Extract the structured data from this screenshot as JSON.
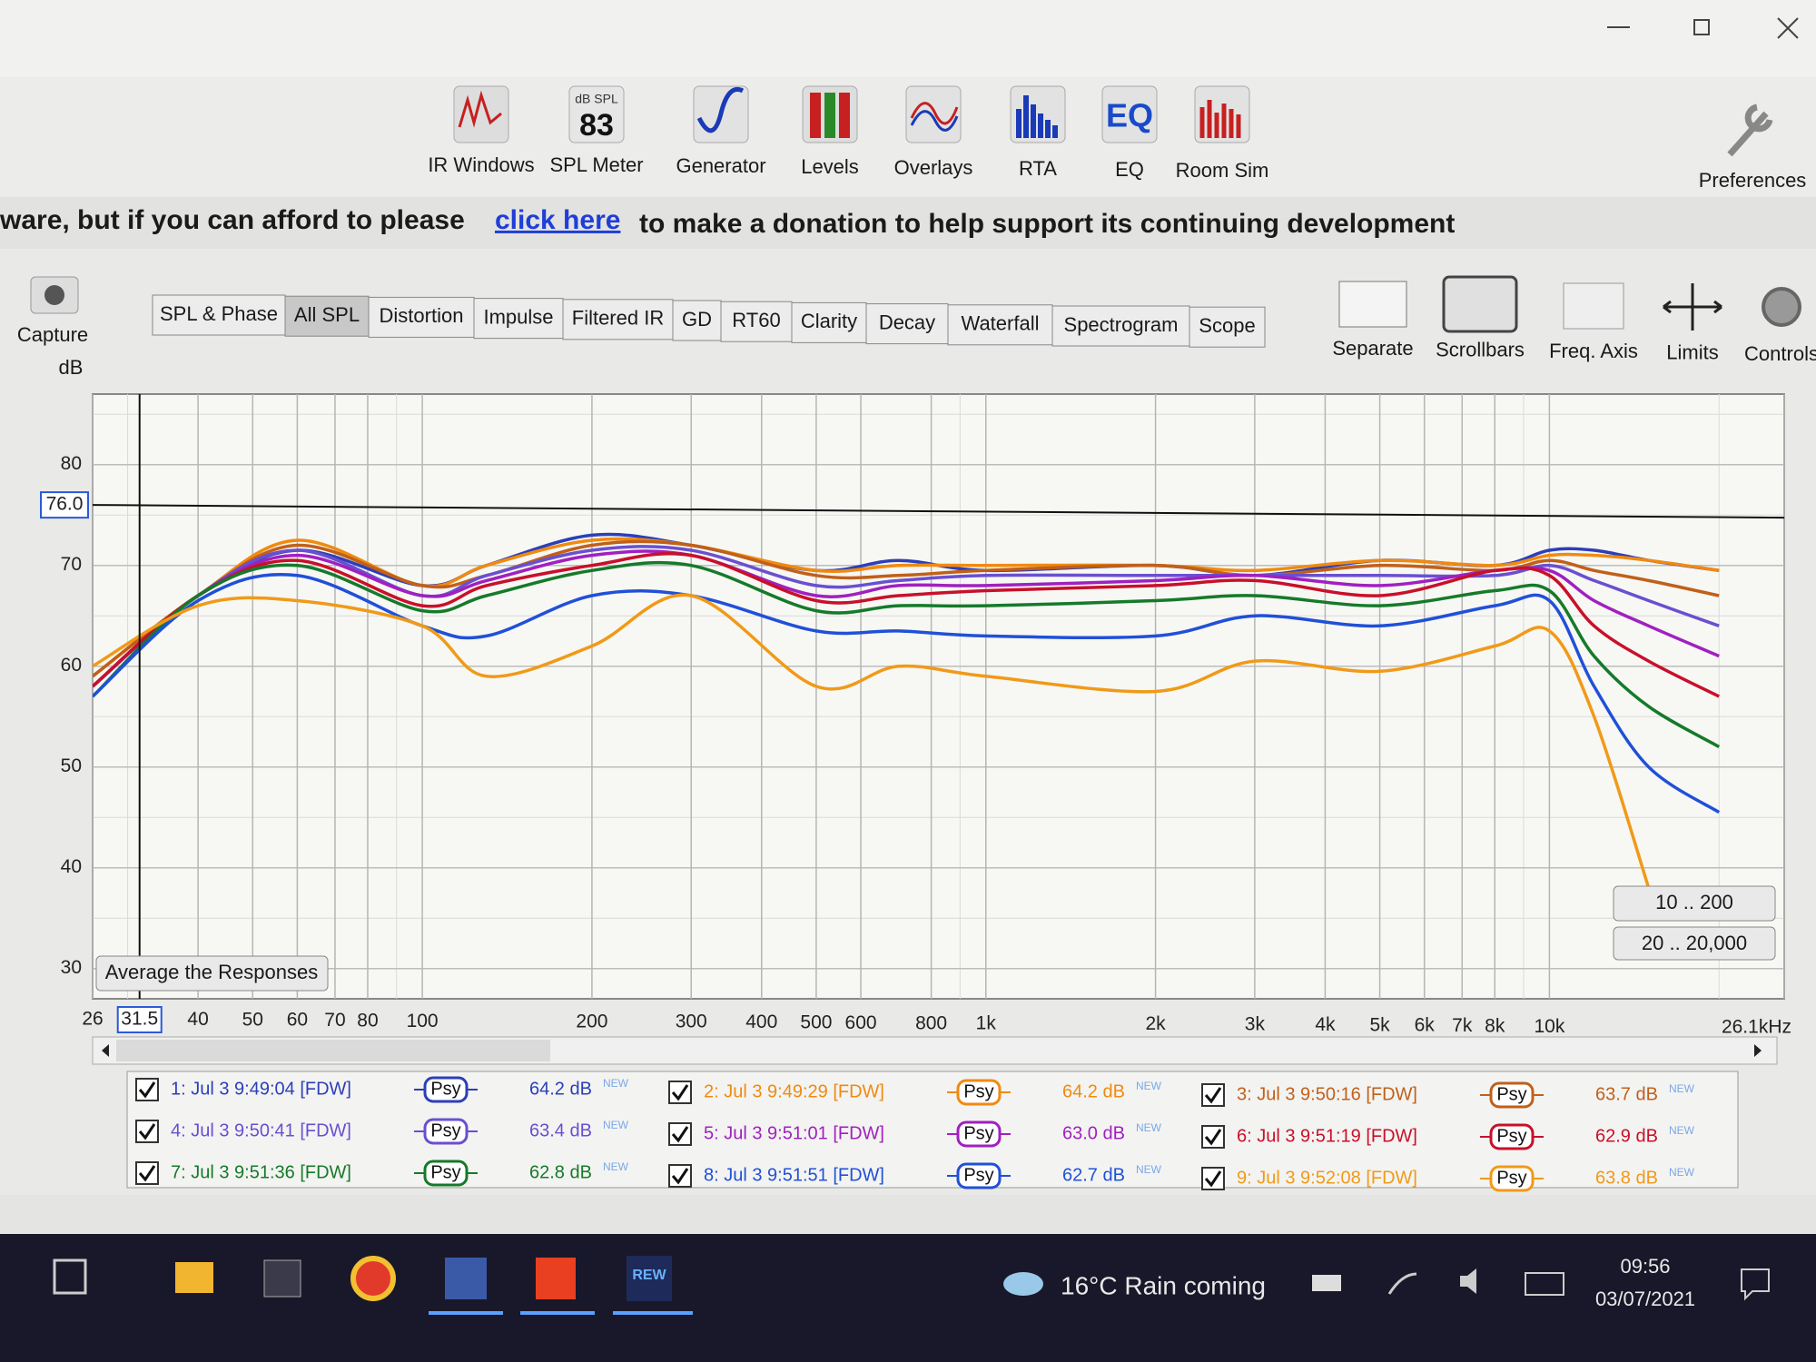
{
  "window": {
    "toolbar": [
      "IR Windows",
      "SPL Meter",
      "Generator",
      "Levels",
      "Overlays",
      "RTA",
      "EQ",
      "Room Sim"
    ],
    "spl_meter_icon": {
      "unit": "dB SPL",
      "reading": "83"
    },
    "eq_icon": "EQ",
    "preferences": "Preferences",
    "banner": {
      "lead": "ware, but if you can afford to please",
      "link": "click here",
      "tail": "to make a donation to help support its continuing development"
    },
    "capture": "Capture",
    "tabs": [
      "SPL & Phase",
      "All SPL",
      "Distortion",
      "Impulse",
      "Filtered IR",
      "GD",
      "RT60",
      "Clarity",
      "Decay",
      "Waterfall",
      "Spectrogram",
      "Scope"
    ],
    "active_tab": 1,
    "view_tools": [
      "Separate",
      "Scrollbars",
      "Freq. Axis",
      "Limits",
      "Controls"
    ],
    "buttons": {
      "average": "Average the Responses",
      "range_1": "10 .. 200",
      "range_2": "20 .. 20,000"
    },
    "taskbar": {
      "weather": "16°C Rain coming",
      "time": "09:56",
      "date": "03/07/2021",
      "app_icon": "REW"
    }
  },
  "chart_data": {
    "type": "line",
    "y_label": "dB",
    "log_x": true,
    "grid": true,
    "x": [
      26,
      40,
      60,
      100,
      130,
      200,
      300,
      500,
      700,
      1000,
      2000,
      3000,
      5000,
      8000,
      10000,
      12000,
      15000,
      20000
    ],
    "xlim": [
      26,
      26100
    ],
    "ylim": [
      27,
      87
    ],
    "yticks": [
      30,
      40,
      50,
      60,
      70,
      80
    ],
    "yminor": [
      35,
      45,
      55,
      65,
      75,
      85
    ],
    "xticks": [
      26,
      40,
      50,
      60,
      70,
      80,
      100,
      200,
      300,
      400,
      500,
      600,
      800,
      {
        "value": 1000,
        "label": "1k"
      },
      {
        "value": 2000,
        "label": "2k"
      },
      {
        "value": 3000,
        "label": "3k"
      },
      {
        "value": 4000,
        "label": "4k"
      },
      {
        "value": 5000,
        "label": "5k"
      },
      {
        "value": 6000,
        "label": "6k"
      },
      {
        "value": 7000,
        "label": "7k"
      },
      {
        "value": 8000,
        "label": "8k"
      },
      {
        "value": 10000,
        "label": "10k"
      },
      {
        "value": 26100,
        "label": "26.1kHz"
      }
    ],
    "xminor": [
      30,
      90,
      900,
      9000,
      20000
    ],
    "cursor_x": {
      "value": 31.5,
      "label": "31.5"
    },
    "cursor_y": {
      "value": 76,
      "label": "76.0"
    },
    "series": [
      {
        "name": "1: Jul 3 9:49:04 [FDW]",
        "color": "#2c3fb8",
        "smoothing": "Psy",
        "level": "64.2 dB",
        "badge": "NEW",
        "values": [
          58,
          67,
          71.5,
          68,
          70,
          73,
          72,
          69.5,
          70.5,
          69.5,
          70,
          69,
          70.5,
          70,
          71.5,
          71.5,
          70.5,
          69.5
        ]
      },
      {
        "name": "2: Jul 3 9:49:29 [FDW]",
        "color": "#f08a10",
        "smoothing": "Psy",
        "level": "64.2 dB",
        "badge": "NEW",
        "values": [
          59,
          67,
          72.5,
          68,
          70,
          72.5,
          72,
          69.5,
          70,
          70,
          70,
          69.5,
          70.5,
          70,
          71,
          71,
          70.5,
          69.5
        ]
      },
      {
        "name": "3: Jul 3 9:50:16 [FDW]",
        "color": "#c0601a",
        "smoothing": "Psy",
        "level": "63.7 dB",
        "badge": "NEW",
        "values": [
          59,
          67,
          72,
          68,
          69,
          72,
          72,
          69,
          69,
          69.5,
          70,
          69,
          70,
          69.5,
          70.5,
          69.5,
          68.5,
          67
        ]
      },
      {
        "name": "4: Jul 3 9:50:41 [FDW]",
        "color": "#6a4fd0",
        "smoothing": "Psy",
        "level": "63.4 dB",
        "badge": "NEW",
        "values": [
          58,
          67,
          71.5,
          67,
          69,
          71.5,
          71.5,
          68,
          68.5,
          69,
          69,
          69,
          69,
          69,
          70,
          68.5,
          66.5,
          64
        ]
      },
      {
        "name": "5: Jul 3 9:51:01 [FDW]",
        "color": "#a020c0",
        "smoothing": "Psy",
        "level": "63.0 dB",
        "badge": "NEW",
        "values": [
          58,
          67,
          71,
          67,
          68.5,
          71,
          71,
          67,
          68,
          68,
          68.5,
          69,
          68,
          69.5,
          69.5,
          66.5,
          64,
          61
        ]
      },
      {
        "name": "6: Jul 3 9:51:19 [FDW]",
        "color": "#c8102a",
        "smoothing": "Psy",
        "level": "62.9 dB",
        "badge": "NEW",
        "values": [
          58,
          67,
          70.5,
          66,
          68,
          70,
          71,
          66.5,
          67,
          67.5,
          68,
          68.5,
          67,
          69.5,
          69,
          64,
          60.5,
          57
        ]
      },
      {
        "name": "7: Jul 3 9:51:36 [FDW]",
        "color": "#157a2a",
        "smoothing": "Psy",
        "level": "62.8 dB",
        "badge": "NEW",
        "values": [
          57,
          67,
          70,
          65.5,
          67,
          69.5,
          70,
          65.5,
          66,
          66,
          66.5,
          67,
          66,
          67.5,
          67.5,
          61,
          56,
          52
        ]
      },
      {
        "name": "8: Jul 3 9:51:51 [FDW]",
        "color": "#2050d8",
        "smoothing": "Psy",
        "level": "62.7 dB",
        "badge": "NEW",
        "values": [
          57,
          66.5,
          69,
          64,
          63,
          67,
          67,
          63.5,
          63.5,
          63,
          63,
          65,
          64,
          66,
          66.5,
          58,
          50,
          45.5
        ]
      },
      {
        "name": "9: Jul 3 9:52:08 [FDW]",
        "color": "#f09a18",
        "smoothing": "Psy",
        "level": "63.8 dB",
        "badge": "NEW",
        "values": [
          60,
          66,
          66.5,
          64,
          59,
          62,
          67,
          58,
          60,
          59,
          57.5,
          60.5,
          59.5,
          62,
          63.5,
          55,
          38,
          null
        ]
      }
    ]
  }
}
